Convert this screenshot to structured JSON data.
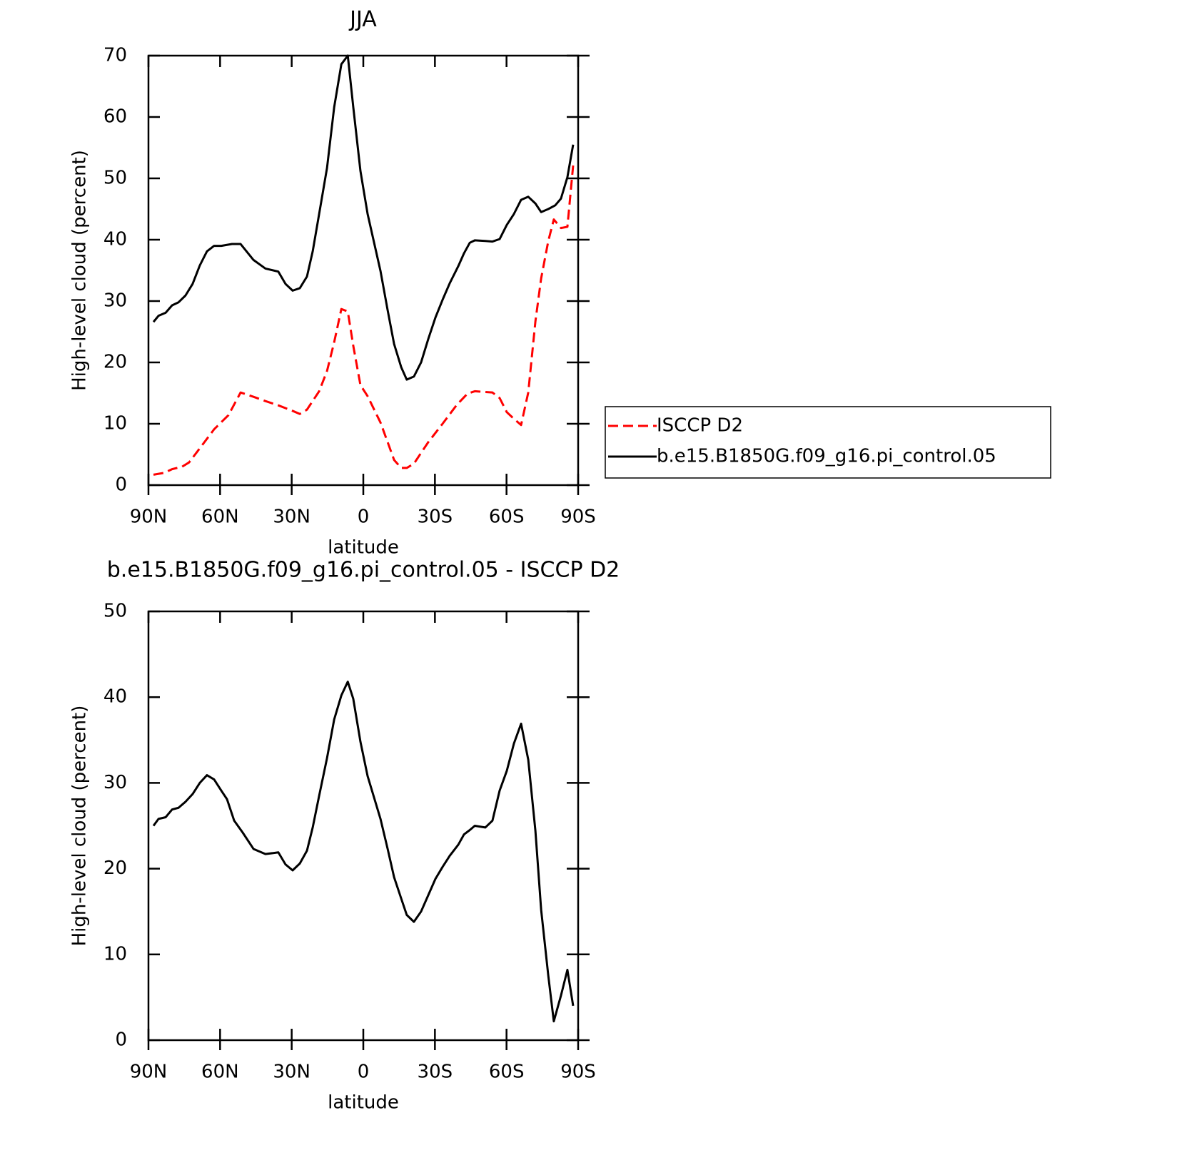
{
  "chart_data": [
    {
      "type": "line",
      "title": "JJA",
      "x_label": "latitude",
      "y_label": "High-level cloud (percent)",
      "xlim": [
        90,
        -90
      ],
      "xticks": [
        {
          "value": 90,
          "label": "90N"
        },
        {
          "value": 60,
          "label": "60N"
        },
        {
          "value": 30,
          "label": "30N"
        },
        0,
        {
          "value": -30,
          "label": "30S"
        },
        {
          "value": -60,
          "label": "60S"
        },
        {
          "value": -90,
          "label": "90S"
        }
      ],
      "ylim": [
        0,
        70
      ],
      "yticks": [
        0,
        10,
        20,
        30,
        40,
        50,
        60,
        70
      ],
      "legend": "right",
      "series": [
        {
          "name": "ISCCP D2",
          "color": "#ff0000",
          "dashed": true,
          "x": [
            87.9,
            83.4,
            80.1,
            75.9,
            73.0,
            68.5,
            62.5,
            56.5,
            51.4,
            46.0,
            41.0,
            35.6,
            29.6,
            26.6,
            23.6,
            18.5,
            15.2,
            12.2,
            9.2,
            6.5,
            4.2,
            1.2,
            -1.8,
            -7.2,
            -10.2,
            -12.9,
            -15.9,
            -18.2,
            -21.2,
            -27.2,
            -33.2,
            -39.2,
            -43.6,
            -46.7,
            -54.1,
            -57.1,
            -60.1,
            -63.1,
            -66.1,
            -69.1,
            -72.1,
            -74.5,
            -77.5,
            -79.8,
            -82.8,
            -85.5,
            -87.9
          ],
          "values": [
            1.7,
            2.0,
            2.6,
            3.0,
            3.7,
            6.0,
            9.1,
            11.4,
            15.1,
            14.4,
            13.7,
            13.0,
            12.1,
            11.6,
            12.3,
            15.3,
            18.6,
            23.3,
            28.7,
            28.3,
            22.7,
            16.3,
            14.5,
            10.2,
            7.0,
            4.1,
            2.8,
            2.8,
            3.5,
            7.0,
            10.0,
            13.1,
            14.9,
            15.3,
            15.1,
            14.2,
            11.9,
            10.8,
            9.8,
            15.1,
            26.7,
            33.7,
            39.8,
            43.3,
            41.9,
            42.1,
            52.1
          ]
        },
        {
          "name": "b.e15.B1850G.f09_g16.pi_control.05",
          "color": "#000000",
          "dashed": false,
          "x": [
            87.9,
            85.8,
            82.8,
            80.1,
            77.4,
            74.5,
            71.5,
            68.5,
            65.5,
            62.5,
            59.5,
            55.0,
            51.4,
            46.0,
            41.0,
            35.6,
            32.6,
            29.6,
            26.6,
            23.6,
            21.2,
            18.5,
            15.2,
            12.2,
            9.2,
            6.5,
            4.2,
            1.2,
            -1.8,
            -7.2,
            -10.2,
            -12.9,
            -15.9,
            -18.2,
            -21.2,
            -24.2,
            -27.2,
            -30.2,
            -33.2,
            -36.2,
            -39.8,
            -42.2,
            -44.6,
            -46.7,
            -51.1,
            -54.1,
            -57.1,
            -60.1,
            -63.1,
            -66.1,
            -69.1,
            -72.1,
            -74.5,
            -77.5,
            -80.4,
            -82.8,
            -85.5,
            -87.9
          ],
          "values": [
            26.6,
            27.6,
            28.1,
            29.3,
            29.8,
            30.9,
            32.8,
            35.8,
            38.1,
            39.0,
            39.0,
            39.3,
            39.3,
            36.7,
            35.3,
            34.8,
            32.8,
            31.7,
            32.1,
            34.0,
            38.1,
            44.2,
            51.7,
            61.6,
            68.6,
            70.0,
            61.6,
            51.2,
            44.2,
            34.9,
            28.5,
            23.0,
            19.2,
            17.2,
            17.7,
            20.0,
            23.8,
            27.3,
            30.2,
            32.9,
            35.7,
            37.8,
            39.5,
            39.9,
            39.8,
            39.7,
            40.1,
            42.4,
            44.2,
            46.5,
            47.0,
            45.9,
            44.5,
            45.0,
            45.6,
            46.7,
            50.2,
            55.5
          ]
        }
      ]
    },
    {
      "type": "line",
      "title": "b.e15.B1850G.f09_g16.pi_control.05 - ISCCP D2",
      "x_label": "latitude",
      "y_label": "High-level cloud (percent)",
      "xlim": [
        90,
        -90
      ],
      "xticks": [
        {
          "value": 90,
          "label": "90N"
        },
        {
          "value": 60,
          "label": "60N"
        },
        {
          "value": 30,
          "label": "30N"
        },
        0,
        {
          "value": -30,
          "label": "30S"
        },
        {
          "value": -60,
          "label": "60S"
        },
        {
          "value": -90,
          "label": "90S"
        }
      ],
      "ylim": [
        0,
        50
      ],
      "yticks": [
        0,
        10,
        20,
        30,
        40,
        50
      ],
      "series": [
        {
          "color": "#000000",
          "dashed": false,
          "x": [
            87.9,
            85.8,
            82.8,
            80.1,
            77.4,
            74.5,
            71.5,
            68.5,
            65.5,
            62.5,
            59.5,
            57.1,
            54.1,
            50.5,
            46.0,
            41.0,
            35.6,
            32.6,
            29.6,
            26.6,
            23.6,
            21.2,
            18.5,
            15.2,
            12.2,
            9.2,
            6.5,
            4.2,
            1.2,
            -1.8,
            -7.2,
            -10.2,
            -12.9,
            -15.9,
            -18.2,
            -21.2,
            -24.2,
            -27.2,
            -30.2,
            -33.2,
            -36.2,
            -39.8,
            -42.2,
            -44.6,
            -46.7,
            -51.1,
            -54.1,
            -57.1,
            -60.1,
            -63.1,
            -66.1,
            -69.1,
            -72.1,
            -74.5,
            -77.5,
            -79.8,
            -82.8,
            -85.5,
            -87.9
          ],
          "values": [
            25.0,
            25.8,
            26.0,
            26.9,
            27.1,
            27.8,
            28.7,
            30.0,
            30.9,
            30.4,
            29.1,
            28.1,
            25.6,
            24.2,
            22.3,
            21.7,
            21.9,
            20.5,
            19.8,
            20.6,
            22.1,
            24.8,
            28.5,
            32.9,
            37.4,
            40.2,
            41.8,
            39.8,
            34.8,
            30.8,
            25.8,
            22.3,
            19.0,
            16.5,
            14.6,
            13.8,
            15.0,
            16.9,
            18.8,
            20.2,
            21.5,
            22.8,
            24.0,
            24.5,
            25.0,
            24.8,
            25.6,
            29.1,
            31.4,
            34.6,
            36.9,
            32.7,
            24.4,
            15.2,
            7.5,
            2.2,
            5.2,
            8.2,
            4.0
          ]
        }
      ]
    }
  ]
}
